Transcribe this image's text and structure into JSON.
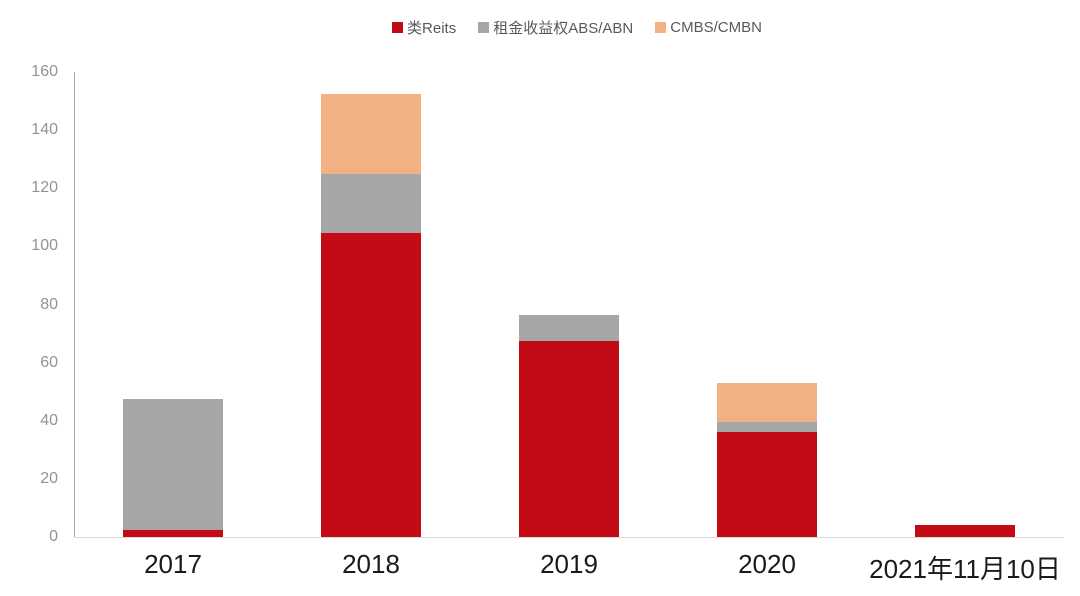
{
  "chart_data": {
    "type": "bar",
    "stacked": true,
    "title": "",
    "xlabel": "",
    "ylabel": "",
    "categories": [
      "2017",
      "2018",
      "2019",
      "2020",
      "2021年11月10日"
    ],
    "series": [
      {
        "name": "类Reits",
        "color": "#C20B15",
        "values": [
          2.5,
          104.5,
          67.5,
          36,
          4
        ]
      },
      {
        "name": "租金收益权ABS/ABN",
        "color": "#A6A6A6",
        "values": [
          45,
          20.5,
          9,
          3.5,
          0
        ]
      },
      {
        "name": "CMBS/CMBN",
        "color": "#F2B183",
        "values": [
          0,
          27.5,
          0,
          13.5,
          0
        ]
      }
    ],
    "totals": [
      47.5,
      152.5,
      76.5,
      53,
      4
    ],
    "ylim": [
      0,
      160
    ],
    "yticks": [
      0,
      20,
      40,
      60,
      80,
      100,
      120,
      140,
      160
    ],
    "legend_position": "top",
    "grid": false,
    "colors": {
      "y_axis_line": "#ABABAB",
      "x_axis_line": "#D9D9D9",
      "y_tick_label": "#939393",
      "x_tick_label": "#1A1A1A",
      "legend_text": "#595959",
      "background": "#FFFFFF"
    }
  }
}
